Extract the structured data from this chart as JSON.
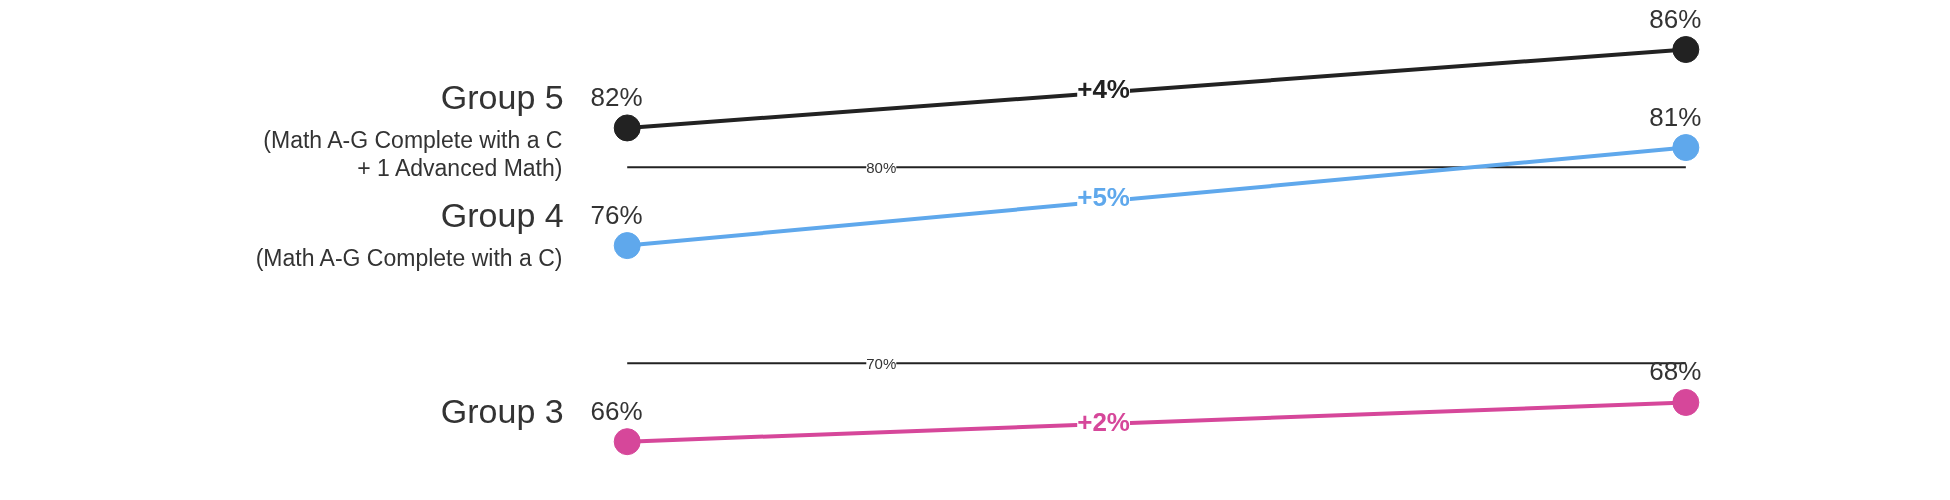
{
  "chart_data": {
    "type": "line",
    "categories": [
      null,
      null
    ],
    "ylim": [
      63,
      88.5
    ],
    "tick_labels": false,
    "grid": false,
    "marker": "circle",
    "line_style": "solid",
    "series": [
      {
        "name": "Group 5\n(Math A-G Complete with a C\n+ 1 Advanced Math)",
        "color": "#222222",
        "values": [
          82,
          86
        ],
        "value_labels": [
          "82%",
          "86%"
        ]
      },
      {
        "name": "Group 4\n(Math A-G Complete with a C)",
        "color": "#5fa8ec",
        "values": [
          76,
          81
        ],
        "value_labels": [
          "76%",
          "81%"
        ]
      },
      {
        "name": "Group 3",
        "color": "#d6479a",
        "values": [
          66,
          68
        ],
        "value_labels": [
          "66%",
          "68%"
        ]
      }
    ],
    "annotations": [
      "+4%",
      "+5%",
      "+2%"
    ],
    "ref_lines": [
      {
        "axis": "y",
        "value": 80,
        "label": "80%",
        "color": "#222222"
      },
      {
        "axis": "y",
        "value": 70,
        "label": "70%",
        "color": "#222222"
      }
    ]
  }
}
